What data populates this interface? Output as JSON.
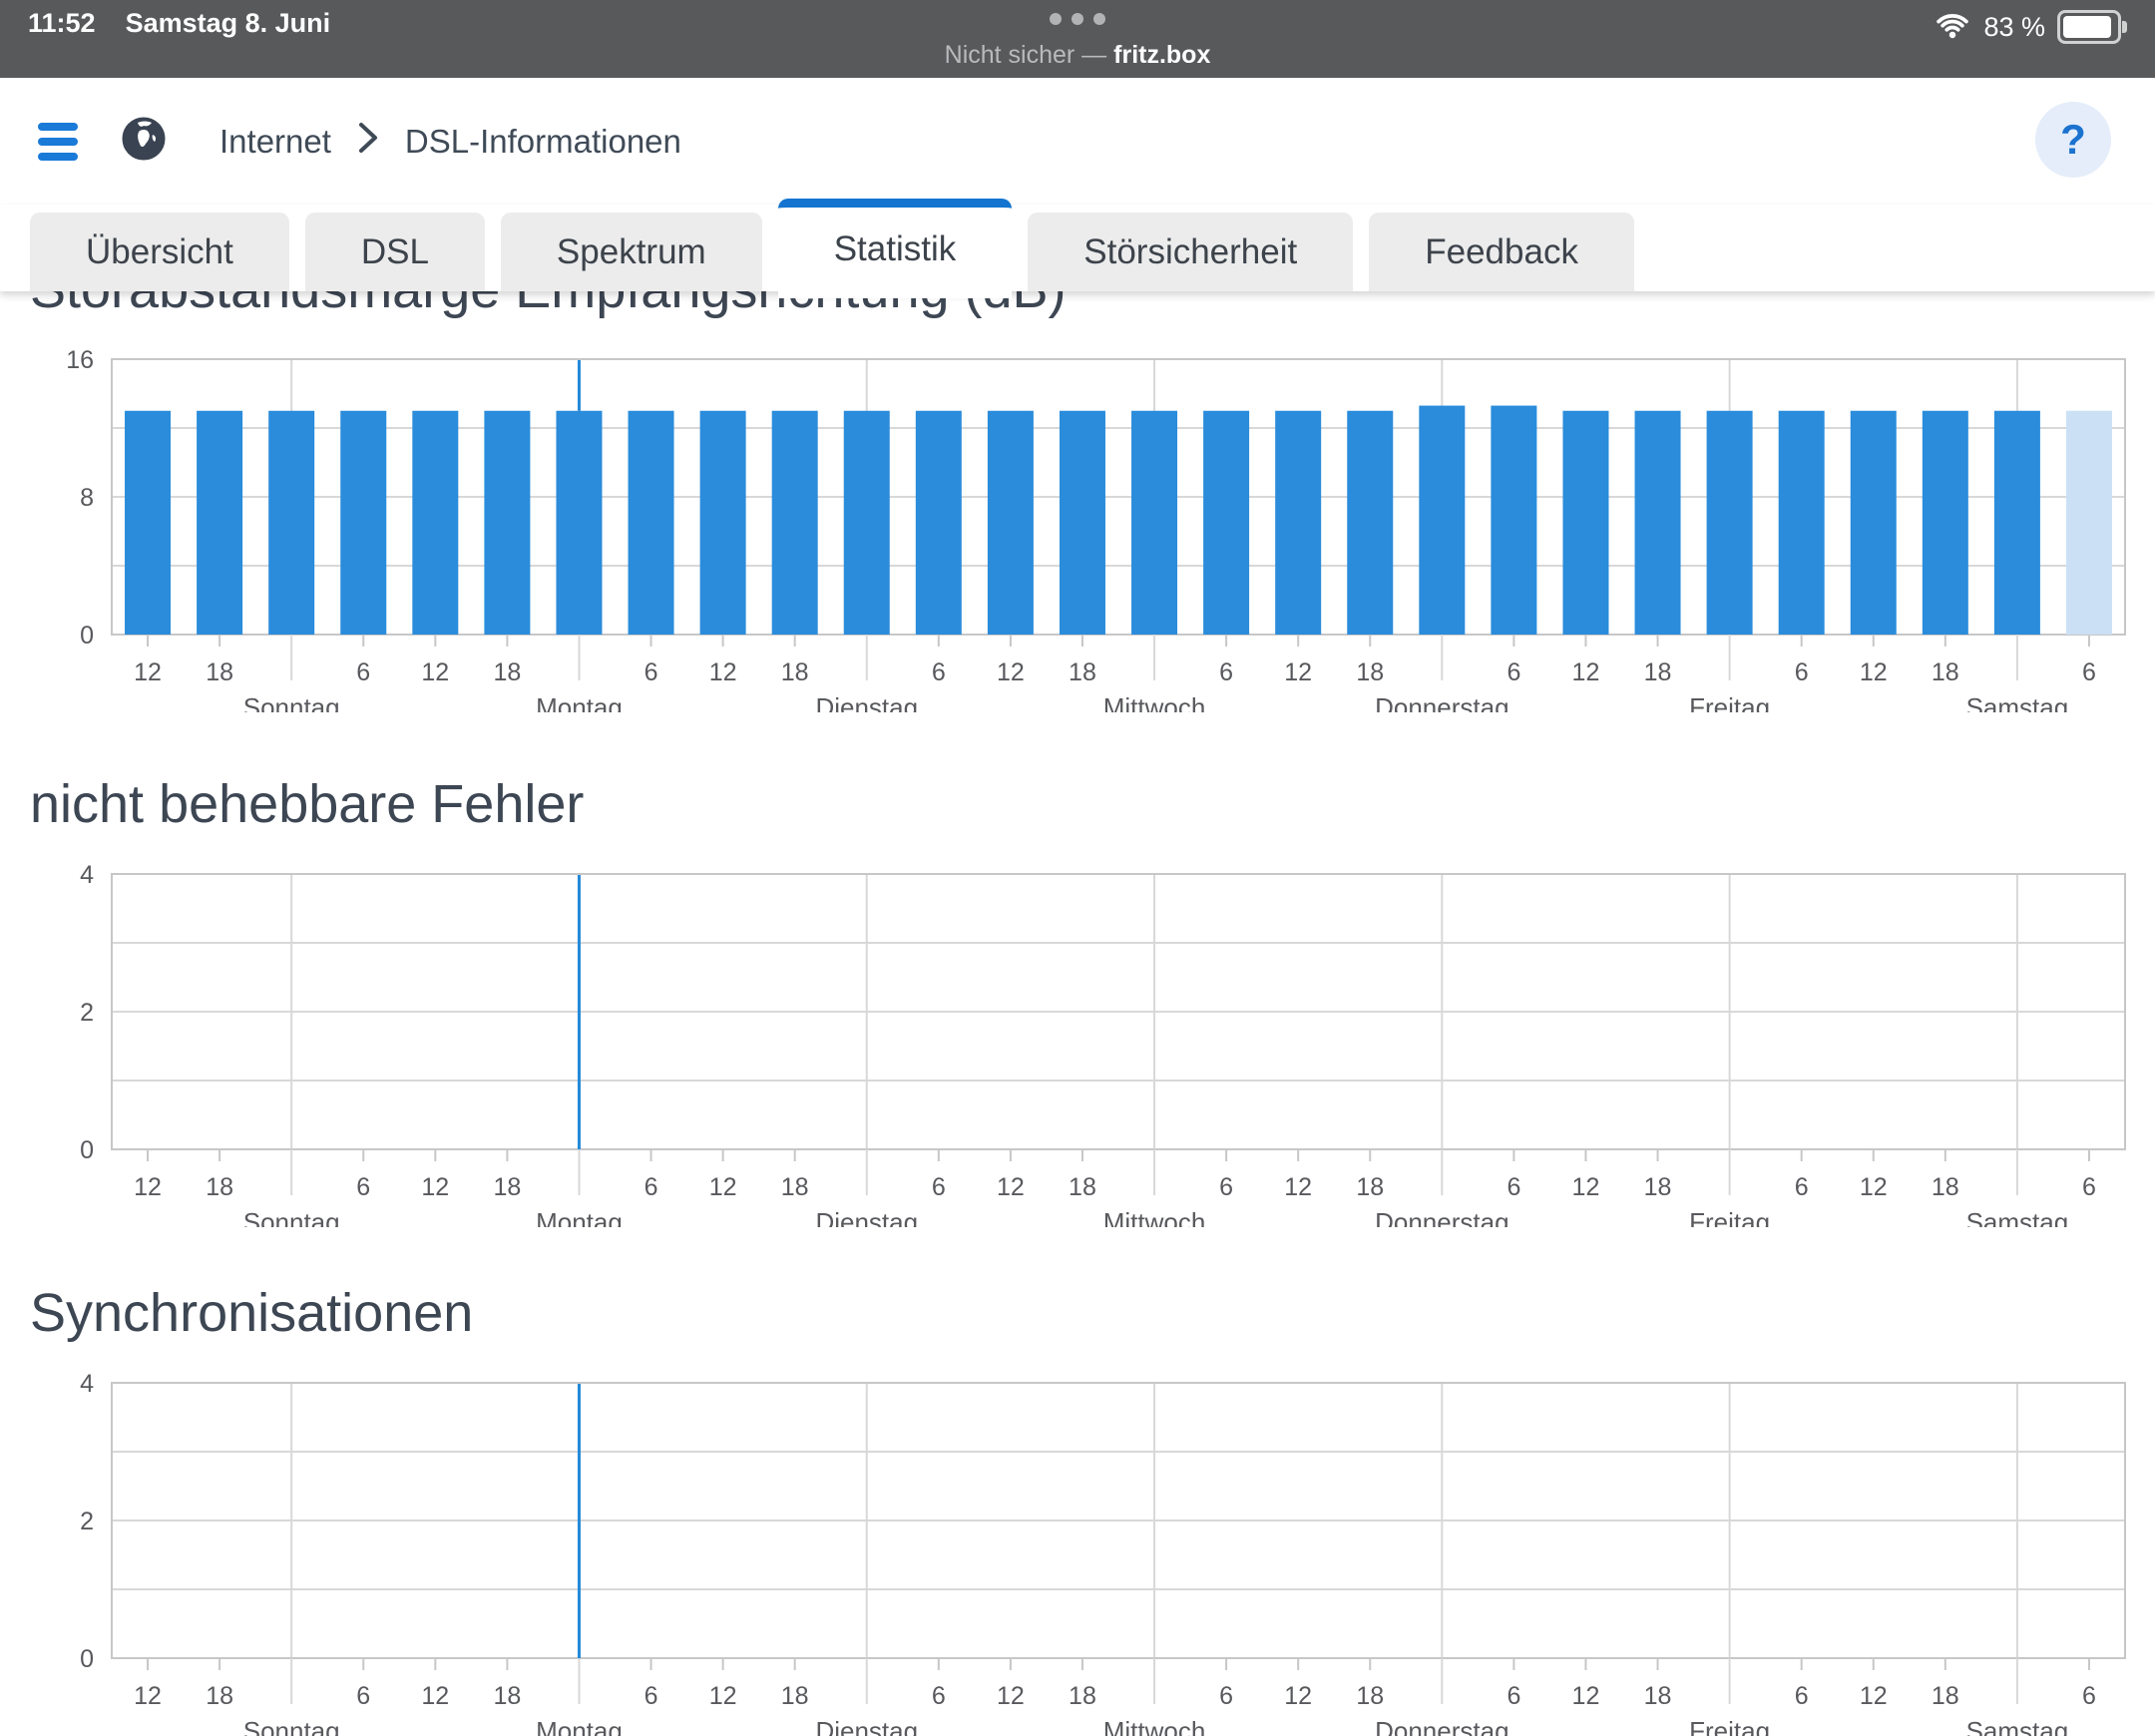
{
  "status_bar": {
    "time": "11:52",
    "date": "Samstag 8. Juni",
    "security_label": "Nicht sicher —",
    "site": "fritz.box",
    "battery_percent_label": "83 %",
    "battery_level": 83
  },
  "header": {
    "breadcrumb": {
      "section": "Internet",
      "page": "DSL-Informationen"
    },
    "help_label": "?"
  },
  "tabs": [
    {
      "label": "Übersicht",
      "active": false
    },
    {
      "label": "DSL",
      "active": false
    },
    {
      "label": "Spektrum",
      "active": false
    },
    {
      "label": "Statistik",
      "active": true
    },
    {
      "label": "Störsicherheit",
      "active": false
    },
    {
      "label": "Feedback",
      "active": false
    }
  ],
  "colors": {
    "accent_blue": "#1474cf",
    "bar_blue": "#2a8cdb",
    "bar_current_light": "#cce0f5",
    "marker_blue": "#2489d8",
    "grid_line": "#d8d8d8",
    "plot_border": "#c7c7c9",
    "axis_text": "#58595d",
    "status_bar_bg": "#58595b"
  },
  "chart_data": [
    {
      "type": "bar",
      "title": "Störabstandsmarge Empfangsrichtung (dB)",
      "ylabel": "",
      "ylim": [
        0,
        16
      ],
      "yticks": [
        {
          "v": 0,
          "label": "0"
        },
        {
          "v": 8,
          "label": "8"
        },
        {
          "v": 16,
          "label": "16"
        }
      ],
      "grid_values": [
        4,
        8,
        12
      ],
      "hours": [
        "12",
        "18",
        "",
        "6",
        "12",
        "18",
        "",
        "6",
        "12",
        "18",
        "",
        "6",
        "12",
        "18",
        "",
        "6",
        "12",
        "18",
        "",
        "6",
        "12",
        "18",
        "",
        "6",
        "12",
        "18",
        "",
        "6"
      ],
      "day_labels": [
        "Sonntag",
        "Montag",
        "Dienstag",
        "Mittwoch",
        "Donnerstag",
        "Freitag",
        "Samstag"
      ],
      "day_slots": [
        2,
        6,
        10,
        14,
        18,
        22,
        26
      ],
      "values": [
        13,
        13,
        13,
        13,
        13,
        13,
        13,
        13,
        13,
        13,
        13,
        13,
        13,
        13,
        13,
        13,
        13,
        13,
        13.3,
        13.3,
        13,
        13,
        13,
        13,
        13,
        13,
        13,
        13
      ],
      "current_slot": 27,
      "marker_slot": 6,
      "legend": "none",
      "grid": "on"
    },
    {
      "type": "bar",
      "title": "nicht behebbare Fehler",
      "ylabel": "",
      "ylim": [
        0,
        4
      ],
      "yticks": [
        {
          "v": 0,
          "label": "0"
        },
        {
          "v": 2,
          "label": "2"
        },
        {
          "v": 4,
          "label": "4"
        }
      ],
      "grid_values": [
        1,
        2,
        3
      ],
      "hours": [
        "12",
        "18",
        "",
        "6",
        "12",
        "18",
        "",
        "6",
        "12",
        "18",
        "",
        "6",
        "12",
        "18",
        "",
        "6",
        "12",
        "18",
        "",
        "6",
        "12",
        "18",
        "",
        "6",
        "12",
        "18",
        "",
        "6"
      ],
      "day_labels": [
        "Sonntag",
        "Montag",
        "Dienstag",
        "Mittwoch",
        "Donnerstag",
        "Freitag",
        "Samstag"
      ],
      "day_slots": [
        2,
        6,
        10,
        14,
        18,
        22,
        26
      ],
      "values": [
        0,
        0,
        0,
        0,
        0,
        0,
        0,
        0,
        0,
        0,
        0,
        0,
        0,
        0,
        0,
        0,
        0,
        0,
        0,
        0,
        0,
        0,
        0,
        0,
        0,
        0,
        0,
        0
      ],
      "current_slot": 27,
      "marker_slot": 6,
      "legend": "none",
      "grid": "on"
    },
    {
      "type": "bar",
      "title": "Synchronisationen",
      "ylabel": "",
      "ylim": [
        0,
        4
      ],
      "yticks": [
        {
          "v": 0,
          "label": "0"
        },
        {
          "v": 2,
          "label": "2"
        },
        {
          "v": 4,
          "label": "4"
        }
      ],
      "grid_values": [
        1,
        2,
        3
      ],
      "hours": [
        "12",
        "18",
        "",
        "6",
        "12",
        "18",
        "",
        "6",
        "12",
        "18",
        "",
        "6",
        "12",
        "18",
        "",
        "6",
        "12",
        "18",
        "",
        "6",
        "12",
        "18",
        "",
        "6",
        "12",
        "18",
        "",
        "6"
      ],
      "day_labels": [
        "Sonntag",
        "Montag",
        "Dienstag",
        "Mittwoch",
        "Donnerstag",
        "Freitag",
        "Samstag"
      ],
      "day_slots": [
        2,
        6,
        10,
        14,
        18,
        22,
        26
      ],
      "values": [
        0,
        0,
        0,
        0,
        0,
        0,
        0,
        0,
        0,
        0,
        0,
        0,
        0,
        0,
        0,
        0,
        0,
        0,
        0,
        0,
        0,
        0,
        0,
        0,
        0,
        0,
        0,
        0
      ],
      "current_slot": 27,
      "marker_slot": 6,
      "legend": "none",
      "grid": "on"
    }
  ]
}
